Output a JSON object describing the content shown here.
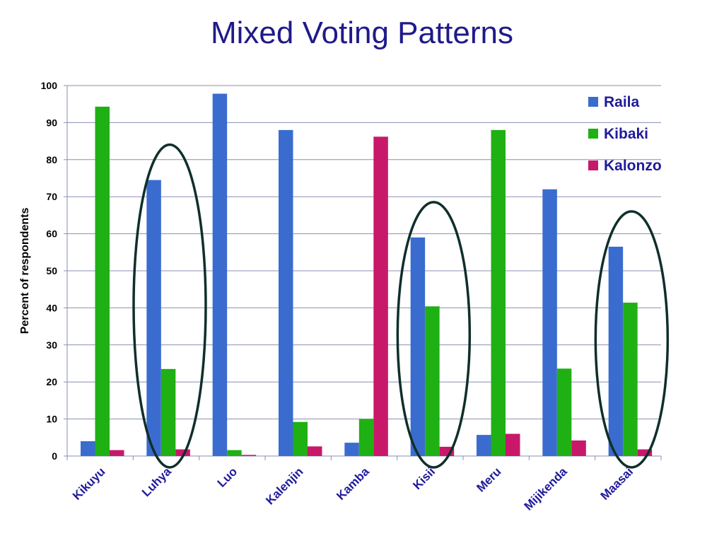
{
  "slide": {
    "title": "Mixed Voting Patterns"
  },
  "colors": {
    "Raila": "#3a6ccf",
    "Kibaki": "#1fb014",
    "Kalonzo": "#c8186a",
    "ellipse": "#0f2f2b",
    "axis_text": "#000000",
    "category_text": "#1f1a9a",
    "legend_text": "#1f1a9a"
  },
  "chart_data": {
    "type": "bar",
    "title": "Mixed Voting Patterns",
    "xlabel": "",
    "ylabel": "Percent of respondents",
    "ylim": [
      0,
      100
    ],
    "yticks": [
      0,
      10,
      20,
      30,
      40,
      50,
      60,
      70,
      80,
      90,
      100
    ],
    "grid": true,
    "legend_position": "top-right",
    "categories": [
      "Kikuyu",
      "Luhya",
      "Luo",
      "Kalenjin",
      "Kamba",
      "Kisii",
      "Meru",
      "Mijikenda",
      "Maasai"
    ],
    "series": [
      {
        "name": "Raila",
        "values": [
          4,
          74.5,
          97.8,
          88,
          3.6,
          59,
          5.7,
          72,
          56.5
        ]
      },
      {
        "name": "Kibaki",
        "values": [
          94.3,
          23.5,
          1.6,
          9.2,
          10,
          40.4,
          88,
          23.6,
          41.4
        ]
      },
      {
        "name": "Kalonzo",
        "values": [
          1.6,
          1.8,
          0.3,
          2.6,
          86.2,
          2.5,
          6,
          4.2,
          1.8
        ]
      }
    ],
    "highlighted_categories": [
      "Luhya",
      "Kisii",
      "Maasai"
    ]
  }
}
